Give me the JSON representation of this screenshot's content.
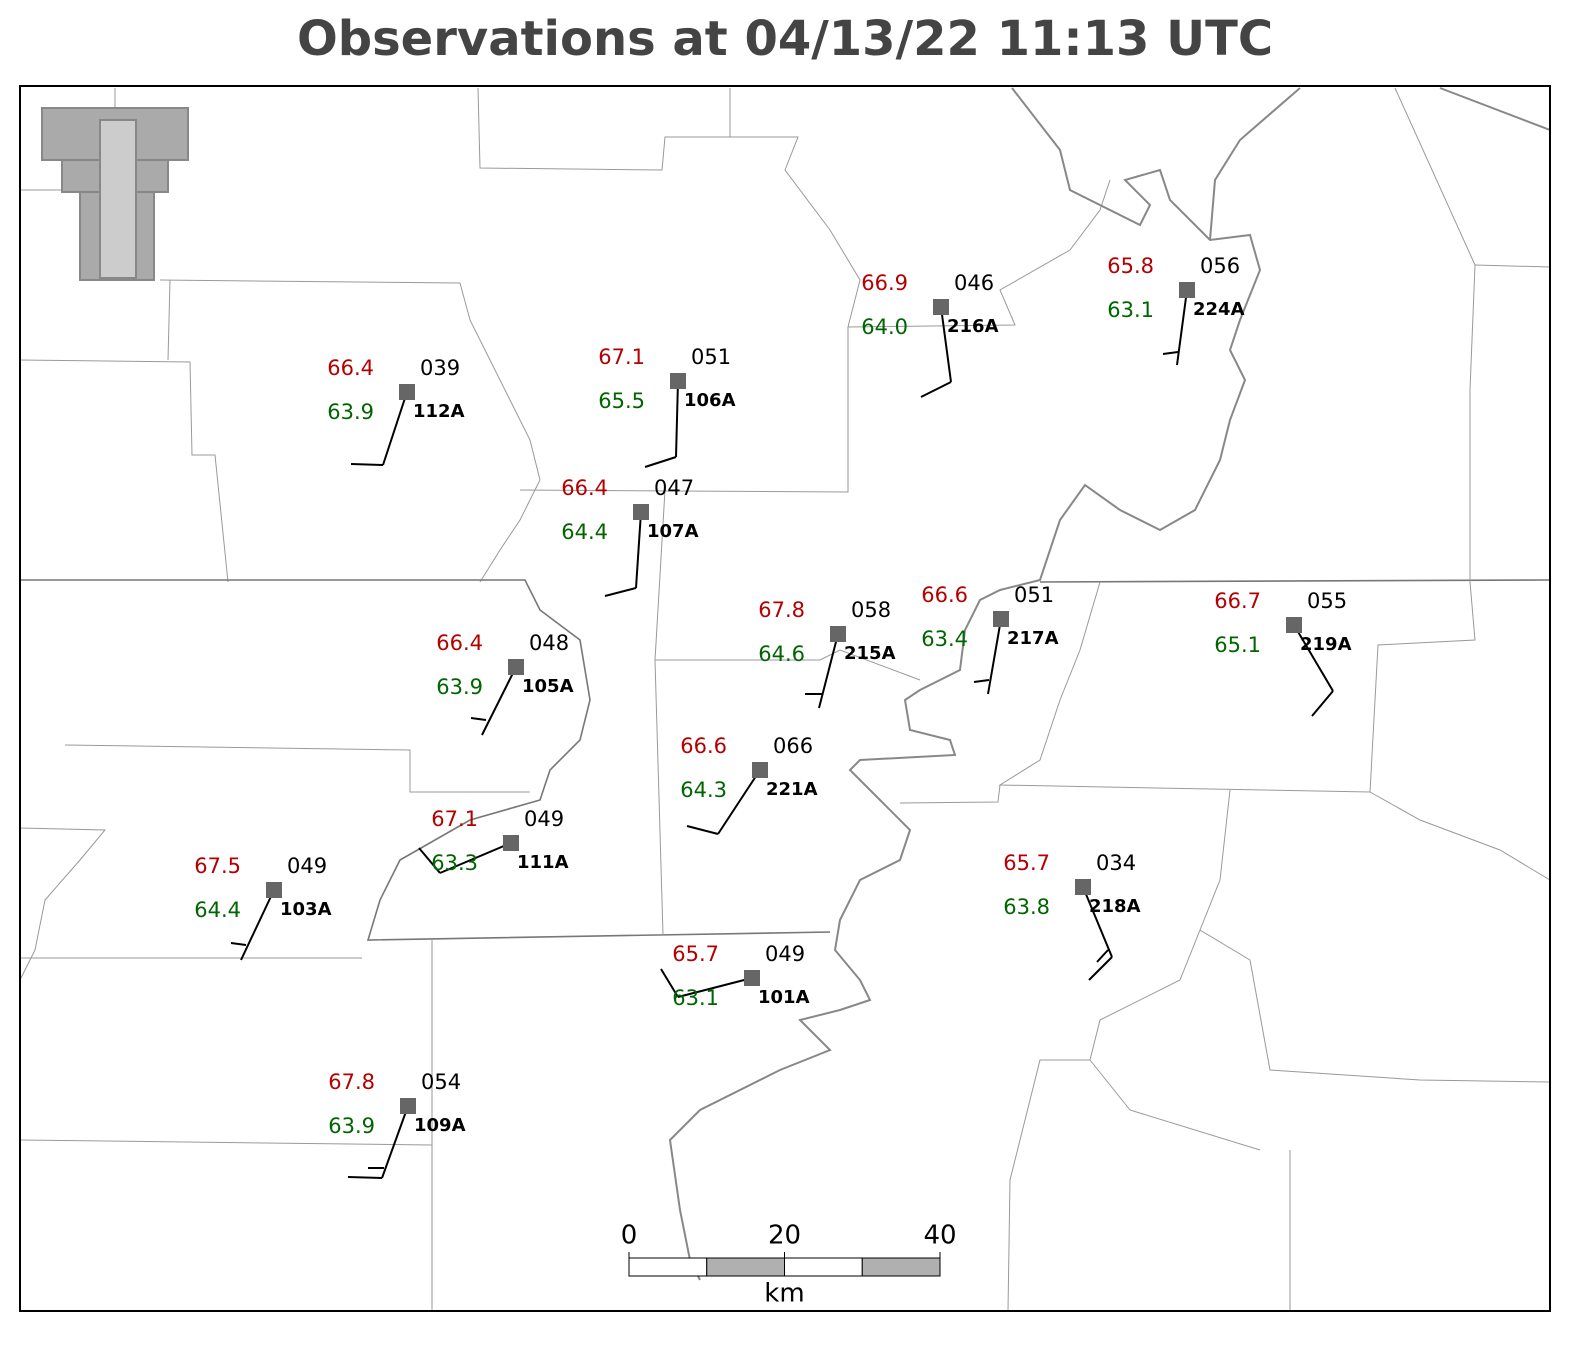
{
  "title": "Observations at 04/13/22 11:13 UTC",
  "stations": [
    {
      "temp": "66.4",
      "dewpoint": "63.9",
      "pressure": "039",
      "id": "112A"
    },
    {
      "temp": "67.1",
      "dewpoint": "65.5",
      "pressure": "051",
      "id": "106A"
    },
    {
      "temp": "66.4",
      "dewpoint": "64.4",
      "pressure": "047",
      "id": "107A"
    },
    {
      "temp": "66.9",
      "dewpoint": "64.0",
      "pressure": "046",
      "id": "216A"
    },
    {
      "temp": "65.8",
      "dewpoint": "63.1",
      "pressure": "056",
      "id": "224A"
    },
    {
      "temp": "67.8",
      "dewpoint": "64.6",
      "pressure": "058",
      "id": "215A"
    },
    {
      "temp": "66.6",
      "dewpoint": "63.4",
      "pressure": "051",
      "id": "217A"
    },
    {
      "temp": "66.7",
      "dewpoint": "65.1",
      "pressure": "055",
      "id": "219A"
    },
    {
      "temp": "66.4",
      "dewpoint": "63.9",
      "pressure": "048",
      "id": "105A"
    },
    {
      "temp": "66.6",
      "dewpoint": "64.3",
      "pressure": "066",
      "id": "221A"
    },
    {
      "temp": "67.1",
      "dewpoint": "63.3",
      "pressure": "049",
      "id": "111A"
    },
    {
      "temp": "67.5",
      "dewpoint": "64.4",
      "pressure": "049",
      "id": "103A"
    },
    {
      "temp": "65.7",
      "dewpoint": "63.8",
      "pressure": "034",
      "id": "218A"
    },
    {
      "temp": "65.7",
      "dewpoint": "63.1",
      "pressure": "049",
      "id": "101A"
    },
    {
      "temp": "67.8",
      "dewpoint": "63.9",
      "pressure": "054",
      "id": "109A"
    }
  ],
  "scale_bar": {
    "ticks": [
      0,
      20,
      40
    ],
    "max": 40,
    "unit": "km"
  }
}
